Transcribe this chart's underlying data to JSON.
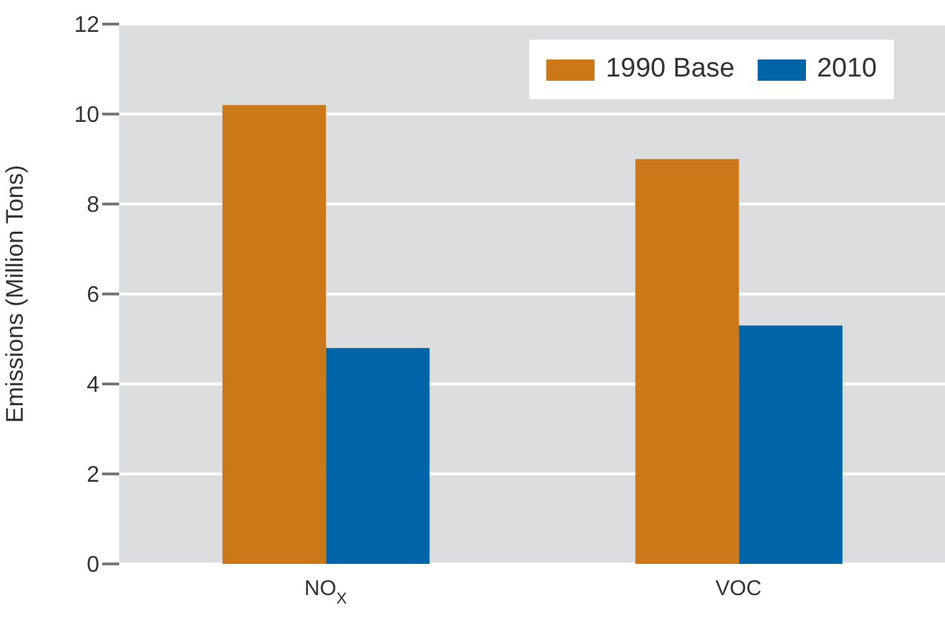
{
  "chart_data": {
    "type": "bar",
    "ylabel": "Emissions (Million Tons)",
    "categories": [
      "NO$_{X}$",
      "VOC"
    ],
    "series": [
      {
        "name": "1990 Base",
        "color": "#cc7818",
        "values": [
          10.2,
          9.0
        ]
      },
      {
        "name": "2010",
        "color": "#0064a8",
        "values": [
          4.8,
          5.3
        ]
      }
    ],
    "ylim": [
      0,
      12
    ],
    "yticks": [
      0,
      2,
      4,
      6,
      8,
      10,
      12
    ],
    "grid": "y",
    "legend": "top right"
  }
}
